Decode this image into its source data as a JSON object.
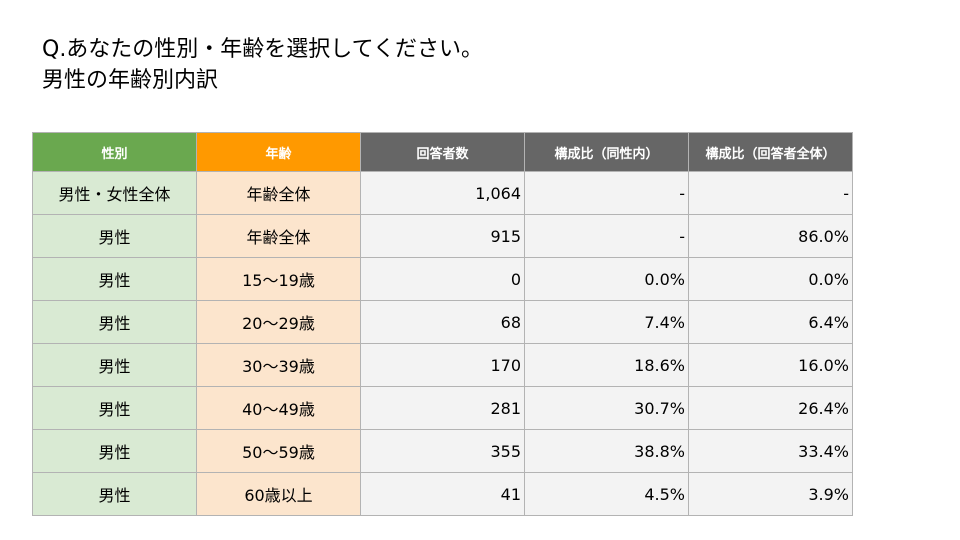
{
  "slide": {
    "question": "Q.あなたの性別・年齢を選択してください。",
    "subtitle": "男性の年齢別内訳"
  },
  "table": {
    "headers": [
      "性別",
      "年齢",
      "回答者数",
      "構成比（同性内）",
      "構成比（回答者全体）"
    ],
    "header_colors": [
      "#6aa84f",
      "#ff9900",
      "#666666",
      "#666666",
      "#666666"
    ],
    "rows": [
      [
        "男性・女性全体",
        "年齢全体",
        "1,064",
        "-",
        "-"
      ],
      [
        "男性",
        "年齢全体",
        "915",
        "-",
        "86.0%"
      ],
      [
        "男性",
        "15～19歳",
        "0",
        "0.0%",
        "0.0%"
      ],
      [
        "男性",
        "20～29歳",
        "68",
        "7.4%",
        "6.4%"
      ],
      [
        "男性",
        "30～39歳",
        "170",
        "18.6%",
        "16.0%"
      ],
      [
        "男性",
        "40～49歳",
        "281",
        "30.7%",
        "26.4%"
      ],
      [
        "男性",
        "50～59歳",
        "355",
        "38.8%",
        "33.4%"
      ],
      [
        "男性",
        "60歳以上",
        "41",
        "4.5%",
        "3.9%"
      ]
    ]
  }
}
